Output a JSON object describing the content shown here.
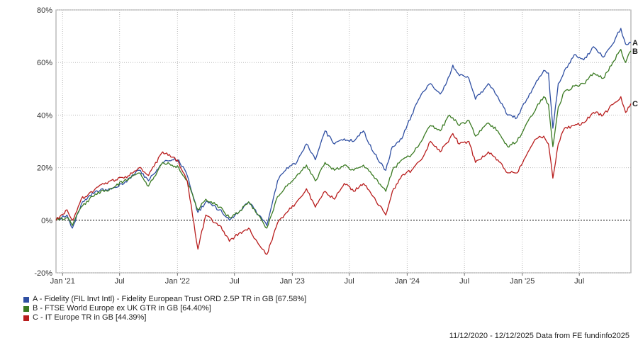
{
  "chart_data": {
    "type": "line",
    "xlim": [
      "2020-12-11",
      "2025-12-12"
    ],
    "ylim": [
      -20,
      80
    ],
    "yticks": [
      -20,
      0,
      20,
      40,
      60,
      80
    ],
    "ytick_labels": [
      "-20%",
      "0%",
      "20%",
      "40%",
      "60%",
      "80%"
    ],
    "xticks": [
      "2021-01-01",
      "2021-07-01",
      "2022-01-01",
      "2022-07-01",
      "2023-01-01",
      "2023-07-01",
      "2024-01-01",
      "2024-07-01",
      "2025-01-01",
      "2025-07-01"
    ],
    "xtick_labels": [
      "Jan '21",
      "Jul",
      "Jan '22",
      "Jul",
      "Jan '23",
      "Jul",
      "Jan '24",
      "Jul",
      "Jan '25",
      "Jul"
    ],
    "grid": true,
    "series": [
      {
        "name": "A - Fidelity (FIL Invt Intl) - Fidelity European Trust ORD 2.5P TR in GB [67.58%]",
        "end_label": "A",
        "color": "#2f4fa2",
        "points": [
          [
            "2020-12-11",
            0
          ],
          [
            "2021-01-15",
            2
          ],
          [
            "2021-02-01",
            -3
          ],
          [
            "2021-03-01",
            6
          ],
          [
            "2021-04-15",
            11
          ],
          [
            "2021-06-01",
            12
          ],
          [
            "2021-07-15",
            14
          ],
          [
            "2021-09-01",
            19
          ],
          [
            "2021-10-01",
            15
          ],
          [
            "2021-11-15",
            22
          ],
          [
            "2021-12-15",
            23
          ],
          [
            "2022-01-05",
            23
          ],
          [
            "2022-02-01",
            17
          ],
          [
            "2022-03-07",
            3
          ],
          [
            "2022-04-01",
            7
          ],
          [
            "2022-05-15",
            4
          ],
          [
            "2022-06-15",
            0
          ],
          [
            "2022-07-15",
            3
          ],
          [
            "2022-08-15",
            7
          ],
          [
            "2022-09-15",
            2
          ],
          [
            "2022-10-12",
            -2
          ],
          [
            "2022-11-15",
            15
          ],
          [
            "2022-12-15",
            20
          ],
          [
            "2023-01-15",
            22
          ],
          [
            "2023-02-15",
            29
          ],
          [
            "2023-03-15",
            23
          ],
          [
            "2023-04-15",
            34
          ],
          [
            "2023-05-15",
            29
          ],
          [
            "2023-06-15",
            31
          ],
          [
            "2023-07-15",
            30
          ],
          [
            "2023-08-15",
            34
          ],
          [
            "2023-09-15",
            26
          ],
          [
            "2023-10-25",
            19
          ],
          [
            "2023-11-15",
            28
          ],
          [
            "2023-12-15",
            31
          ],
          [
            "2024-01-15",
            40
          ],
          [
            "2024-02-15",
            48
          ],
          [
            "2024-03-15",
            52
          ],
          [
            "2024-04-15",
            48
          ],
          [
            "2024-05-15",
            55
          ],
          [
            "2024-05-25",
            59
          ],
          [
            "2024-06-15",
            55
          ],
          [
            "2024-07-15",
            54
          ],
          [
            "2024-08-05",
            46
          ],
          [
            "2024-09-15",
            52
          ],
          [
            "2024-10-15",
            47
          ],
          [
            "2024-11-15",
            40
          ],
          [
            "2024-12-15",
            39
          ],
          [
            "2025-01-15",
            46
          ],
          [
            "2025-02-15",
            53
          ],
          [
            "2025-03-10",
            57
          ],
          [
            "2025-03-25",
            56
          ],
          [
            "2025-04-08",
            35
          ],
          [
            "2025-04-25",
            52
          ],
          [
            "2025-05-15",
            57
          ],
          [
            "2025-06-15",
            63
          ],
          [
            "2025-07-15",
            61
          ],
          [
            "2025-08-15",
            66
          ],
          [
            "2025-09-15",
            62
          ],
          [
            "2025-10-15",
            67
          ],
          [
            "2025-11-10",
            73
          ],
          [
            "2025-11-25",
            67
          ],
          [
            "2025-12-12",
            67.58
          ]
        ]
      },
      {
        "name": "B - FTSE World Europe ex UK GTR in GB [64.40%]",
        "end_label": "B",
        "color": "#3a7a22",
        "points": [
          [
            "2020-12-11",
            0
          ],
          [
            "2021-01-15",
            1
          ],
          [
            "2021-02-01",
            -2
          ],
          [
            "2021-03-01",
            5
          ],
          [
            "2021-04-15",
            10
          ],
          [
            "2021-06-01",
            12
          ],
          [
            "2021-07-15",
            15
          ],
          [
            "2021-09-01",
            18
          ],
          [
            "2021-10-01",
            13
          ],
          [
            "2021-11-15",
            22
          ],
          [
            "2021-12-15",
            21
          ],
          [
            "2022-01-05",
            20
          ],
          [
            "2022-02-01",
            15
          ],
          [
            "2022-03-07",
            4
          ],
          [
            "2022-04-01",
            8
          ],
          [
            "2022-05-15",
            5
          ],
          [
            "2022-06-15",
            1
          ],
          [
            "2022-07-15",
            3
          ],
          [
            "2022-08-15",
            7
          ],
          [
            "2022-09-15",
            2
          ],
          [
            "2022-10-12",
            -3
          ],
          [
            "2022-11-15",
            9
          ],
          [
            "2022-12-15",
            13
          ],
          [
            "2023-01-15",
            17
          ],
          [
            "2023-02-15",
            21
          ],
          [
            "2023-03-15",
            15
          ],
          [
            "2023-04-15",
            22
          ],
          [
            "2023-05-15",
            19
          ],
          [
            "2023-06-15",
            21
          ],
          [
            "2023-07-15",
            19
          ],
          [
            "2023-08-15",
            21
          ],
          [
            "2023-09-15",
            17
          ],
          [
            "2023-10-25",
            11
          ],
          [
            "2023-11-15",
            19
          ],
          [
            "2023-12-15",
            23
          ],
          [
            "2024-01-15",
            25
          ],
          [
            "2024-02-15",
            30
          ],
          [
            "2024-03-15",
            36
          ],
          [
            "2024-04-15",
            34
          ],
          [
            "2024-05-15",
            40
          ],
          [
            "2024-05-25",
            39
          ],
          [
            "2024-06-15",
            36
          ],
          [
            "2024-07-15",
            38
          ],
          [
            "2024-08-05",
            32
          ],
          [
            "2024-09-15",
            37
          ],
          [
            "2024-10-15",
            34
          ],
          [
            "2024-11-15",
            28
          ],
          [
            "2024-12-15",
            30
          ],
          [
            "2025-01-15",
            37
          ],
          [
            "2025-02-15",
            43
          ],
          [
            "2025-03-10",
            47
          ],
          [
            "2025-03-25",
            44
          ],
          [
            "2025-04-08",
            28
          ],
          [
            "2025-04-25",
            43
          ],
          [
            "2025-05-15",
            49
          ],
          [
            "2025-06-15",
            51
          ],
          [
            "2025-07-15",
            52
          ],
          [
            "2025-08-15",
            56
          ],
          [
            "2025-09-15",
            54
          ],
          [
            "2025-10-15",
            60
          ],
          [
            "2025-11-10",
            65
          ],
          [
            "2025-11-25",
            60
          ],
          [
            "2025-12-12",
            64.4
          ]
        ]
      },
      {
        "name": "C - IT Europe TR in GB [44.39%]",
        "end_label": "C",
        "color": "#b81d1d",
        "points": [
          [
            "2020-12-11",
            0
          ],
          [
            "2021-01-15",
            4
          ],
          [
            "2021-02-01",
            0
          ],
          [
            "2021-03-01",
            8
          ],
          [
            "2021-04-15",
            12
          ],
          [
            "2021-06-01",
            15
          ],
          [
            "2021-07-15",
            16
          ],
          [
            "2021-09-01",
            20
          ],
          [
            "2021-10-01",
            17
          ],
          [
            "2021-11-15",
            26
          ],
          [
            "2021-12-15",
            24
          ],
          [
            "2022-01-05",
            22
          ],
          [
            "2022-02-01",
            15
          ],
          [
            "2022-03-07",
            -11
          ],
          [
            "2022-04-01",
            2
          ],
          [
            "2022-05-15",
            -2
          ],
          [
            "2022-06-15",
            -8
          ],
          [
            "2022-07-15",
            -5
          ],
          [
            "2022-08-15",
            -3
          ],
          [
            "2022-09-15",
            -9
          ],
          [
            "2022-10-12",
            -13
          ],
          [
            "2022-11-15",
            -1
          ],
          [
            "2022-12-15",
            3
          ],
          [
            "2023-01-15",
            7
          ],
          [
            "2023-02-15",
            12
          ],
          [
            "2023-03-15",
            5
          ],
          [
            "2023-04-15",
            11
          ],
          [
            "2023-05-15",
            8
          ],
          [
            "2023-06-15",
            14
          ],
          [
            "2023-07-15",
            11
          ],
          [
            "2023-08-15",
            14
          ],
          [
            "2023-09-15",
            9
          ],
          [
            "2023-10-25",
            2
          ],
          [
            "2023-11-15",
            11
          ],
          [
            "2023-12-15",
            17
          ],
          [
            "2024-01-15",
            19
          ],
          [
            "2024-02-15",
            23
          ],
          [
            "2024-03-15",
            30
          ],
          [
            "2024-04-15",
            26
          ],
          [
            "2024-05-15",
            31
          ],
          [
            "2024-05-25",
            33
          ],
          [
            "2024-06-15",
            29
          ],
          [
            "2024-07-15",
            30
          ],
          [
            "2024-08-05",
            22
          ],
          [
            "2024-09-15",
            26
          ],
          [
            "2024-10-15",
            23
          ],
          [
            "2024-11-15",
            18
          ],
          [
            "2024-12-15",
            18
          ],
          [
            "2025-01-15",
            25
          ],
          [
            "2025-02-15",
            31
          ],
          [
            "2025-03-10",
            32
          ],
          [
            "2025-03-25",
            29
          ],
          [
            "2025-04-08",
            16
          ],
          [
            "2025-04-25",
            29
          ],
          [
            "2025-05-15",
            35
          ],
          [
            "2025-06-15",
            36
          ],
          [
            "2025-07-15",
            37
          ],
          [
            "2025-08-15",
            41
          ],
          [
            "2025-09-15",
            40
          ],
          [
            "2025-10-15",
            44
          ],
          [
            "2025-11-10",
            47
          ],
          [
            "2025-11-25",
            41
          ],
          [
            "2025-12-12",
            44.39
          ]
        ]
      }
    ],
    "footer": "11/12/2020 - 12/12/2025 Data from FE fundinfo2025"
  }
}
